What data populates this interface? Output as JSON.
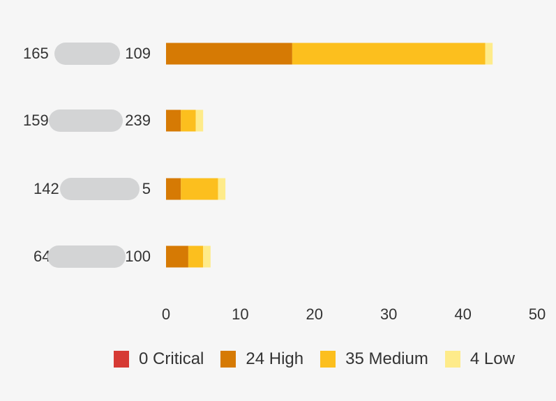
{
  "chart_data": {
    "type": "bar",
    "orientation": "horizontal",
    "stacked": true,
    "categories": [
      "165…109",
      "159…239",
      "142…5",
      "64…100"
    ],
    "category_visible_text": [
      {
        "left": "165",
        "right": "109"
      },
      {
        "left": "159",
        "right": "239"
      },
      {
        "left": "142",
        "right": "5"
      },
      {
        "left": "64",
        "right": "100"
      }
    ],
    "series": [
      {
        "name": "Critical",
        "color": "#d63a34",
        "values": [
          0,
          0,
          0,
          0
        ]
      },
      {
        "name": "High",
        "color": "#d67a04",
        "values": [
          17,
          2,
          2,
          3
        ]
      },
      {
        "name": "Medium",
        "color": "#fcbf1e",
        "values": [
          26,
          2,
          5,
          2
        ]
      },
      {
        "name": "Low",
        "color": "#feeb8a",
        "values": [
          1,
          1,
          1,
          1
        ]
      }
    ],
    "xlim": [
      0,
      50
    ],
    "x_ticks": [
      "0",
      "10",
      "20",
      "30",
      "40",
      "50"
    ],
    "title": "",
    "xlabel": "",
    "ylabel": "",
    "grid": false,
    "legend_position": "bottom",
    "legend": [
      {
        "count": "0",
        "label": "Critical",
        "color": "#d63a34"
      },
      {
        "count": "24",
        "label": "High",
        "color": "#d67a04"
      },
      {
        "count": "35",
        "label": "Medium",
        "color": "#fcbf1e"
      },
      {
        "count": "4",
        "label": "Low",
        "color": "#feeb8a"
      }
    ]
  }
}
